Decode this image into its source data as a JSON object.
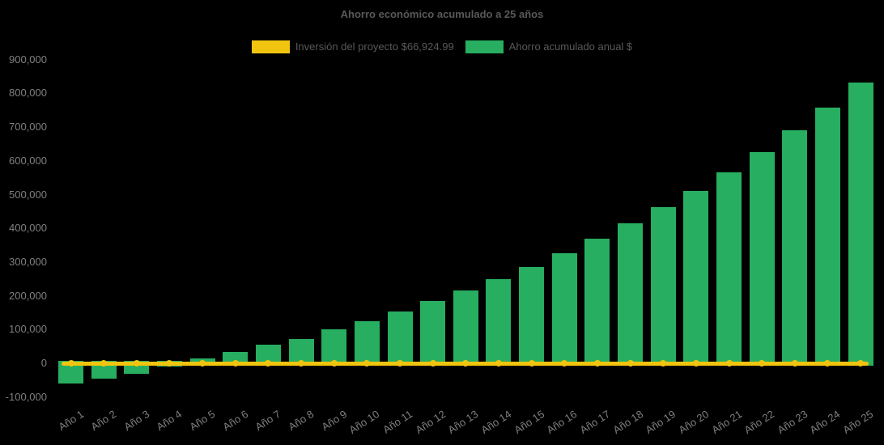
{
  "title": "Ahorro económico acumulado a 25 años",
  "legend": {
    "items": [
      {
        "label": "Inversión del proyecto $66,924.99",
        "color": "#F1C40F"
      },
      {
        "label": "Ahorro acumulado anual $",
        "color": "#27AE60"
      }
    ]
  },
  "colors": {
    "background": "#000000",
    "title_text": "#595959",
    "legend_text": "#595959",
    "axis_label_text": "#7f7f7f",
    "bar_green": "#27AE60",
    "line_yellow": "#F1C40F"
  },
  "chart_data": {
    "type": "bar",
    "title": "Ahorro económico acumulado a 25 años",
    "xlabel": "",
    "ylabel": "",
    "ylim": [
      -100000,
      900000
    ],
    "ytick_step": 100000,
    "y_tick_labels": [
      "900,000",
      "800,000",
      "700,000",
      "600,000",
      "500,000",
      "400,000",
      "300,000",
      "200,000",
      "100,000",
      "0",
      "-100,000"
    ],
    "grid": false,
    "legend_position": "top",
    "categories": [
      "Año 1",
      "Año 2",
      "Año 3",
      "Año 4",
      "Año 5",
      "Año 6",
      "Año 7",
      "Año 8",
      "Año 9",
      "Año 10",
      "Año 11",
      "Año 12",
      "Año 13",
      "Año 14",
      "Año 15",
      "Año 16",
      "Año 17",
      "Año 18",
      "Año 19",
      "Año 20",
      "Año 21",
      "Año 22",
      "Año 23",
      "Año 24",
      "Año 25"
    ],
    "series": [
      {
        "name": "Ahorro acumulado anual $",
        "type": "bar",
        "color": "#27AE60",
        "values": [
          -60000,
          -46000,
          -31000,
          -9000,
          15000,
          34000,
          54000,
          73000,
          101000,
          124000,
          154000,
          184000,
          215000,
          250000,
          286000,
          327000,
          370000,
          414000,
          462000,
          510000,
          566000,
          627000,
          691000,
          757000,
          831000
        ]
      },
      {
        "name": "Inversión del proyecto $66,924.99",
        "type": "line",
        "color": "#F1C40F",
        "markers": true,
        "values": [
          0,
          0,
          0,
          0,
          0,
          0,
          0,
          0,
          0,
          0,
          0,
          0,
          0,
          0,
          0,
          0,
          0,
          0,
          0,
          0,
          0,
          0,
          0,
          0,
          0
        ]
      }
    ]
  }
}
